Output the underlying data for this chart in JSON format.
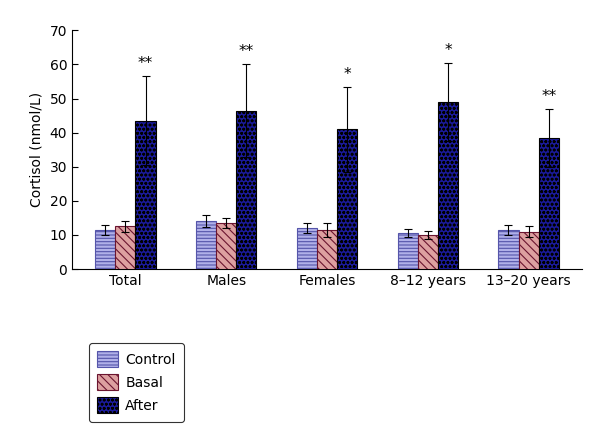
{
  "categories": [
    "Total",
    "Males",
    "Females",
    "8–12 years",
    "13–20 years"
  ],
  "control_values": [
    11.5,
    14.0,
    12.0,
    10.5,
    11.5
  ],
  "basal_values": [
    12.5,
    13.5,
    11.5,
    10.0,
    11.0
  ],
  "after_values": [
    43.5,
    46.5,
    41.0,
    49.0,
    38.5
  ],
  "control_errors": [
    1.5,
    1.8,
    1.5,
    1.2,
    1.5
  ],
  "basal_errors": [
    1.5,
    1.5,
    2.0,
    1.2,
    1.5
  ],
  "after_errors": [
    13.0,
    13.5,
    12.5,
    11.5,
    8.5
  ],
  "significance": [
    "**",
    "**",
    "*",
    "*",
    "**"
  ],
  "ylabel": "Cortisol (nmol/L)",
  "ylim": [
    0,
    70
  ],
  "yticks": [
    0,
    10,
    20,
    30,
    40,
    50,
    60,
    70
  ],
  "legend_labels": [
    "Control",
    "Basal",
    "After"
  ],
  "control_facecolor": "#b0b0e8",
  "basal_facecolor": "#ffffff",
  "basal_hatch_color": "#8B1A4A",
  "after_facecolor": "#1a1a99",
  "bar_width": 0.2,
  "sig_fontsize": 11,
  "axis_fontsize": 10,
  "legend_fontsize": 10
}
